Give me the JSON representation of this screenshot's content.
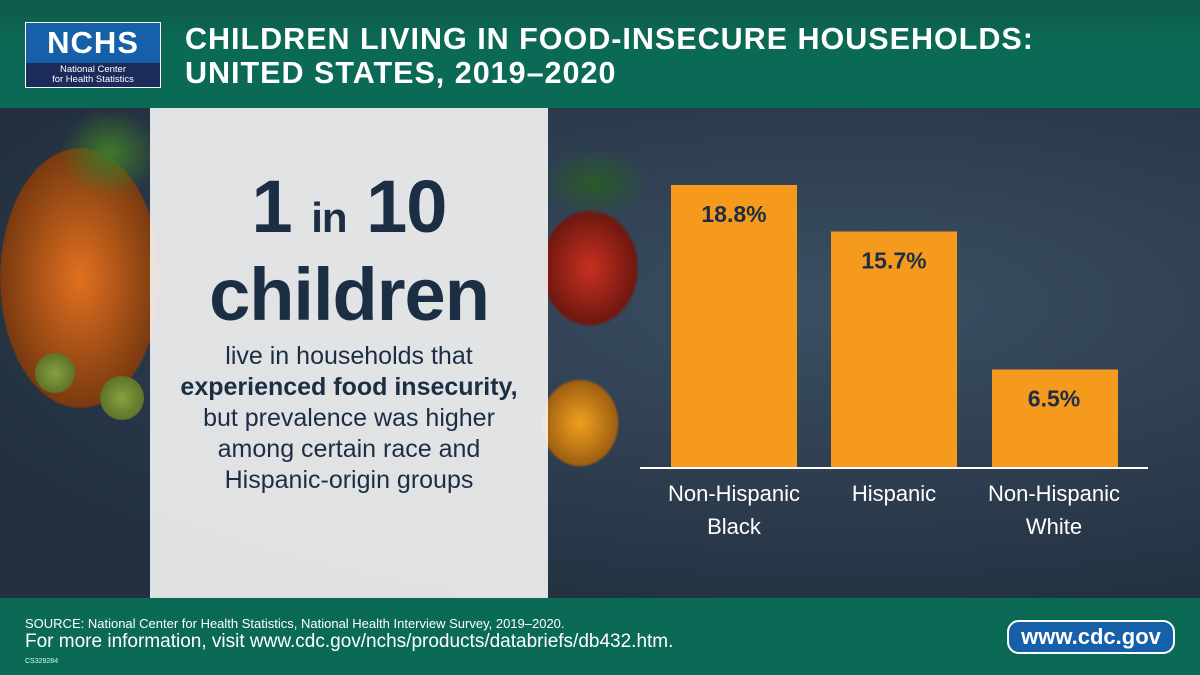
{
  "header": {
    "logo_big": "NCHS",
    "logo_small_1": "National Center",
    "logo_small_2": "for Health Statistics",
    "title_1": "CHILDREN LIVING IN FOOD-INSECURE HOUSEHOLDS:",
    "title_2": "UNITED STATES, 2019–2020"
  },
  "panel": {
    "big_num": "1",
    "big_in": "in",
    "big_num2": "10",
    "big_word": "children",
    "desc_1": "live in households that",
    "desc_bold": "experienced food insecurity,",
    "desc_2": "but prevalence was higher among certain race and Hispanic-origin groups"
  },
  "chart_data": {
    "type": "bar",
    "categories": [
      "Non-Hispanic Black",
      "Hispanic",
      "Non-Hispanic White"
    ],
    "category_lines": [
      [
        "Non-Hispanic",
        "Black"
      ],
      [
        "Hispanic"
      ],
      [
        "Non-Hispanic",
        "White"
      ]
    ],
    "values": [
      18.8,
      15.7,
      6.5
    ],
    "labels": [
      "18.8%",
      "15.7%",
      "6.5%"
    ],
    "unit": "%",
    "ylim": [
      0,
      20
    ],
    "grid": false,
    "bar_color": "#f59a1c"
  },
  "footer": {
    "source": "SOURCE: National Center for Health Statistics, National Health Interview Survey, 2019–2020.",
    "more": "For more information, visit www.cdc.gov/nchs/products/databriefs/db432.htm.",
    "code": "CS329284",
    "cdc_button": "www.cdc.gov"
  }
}
